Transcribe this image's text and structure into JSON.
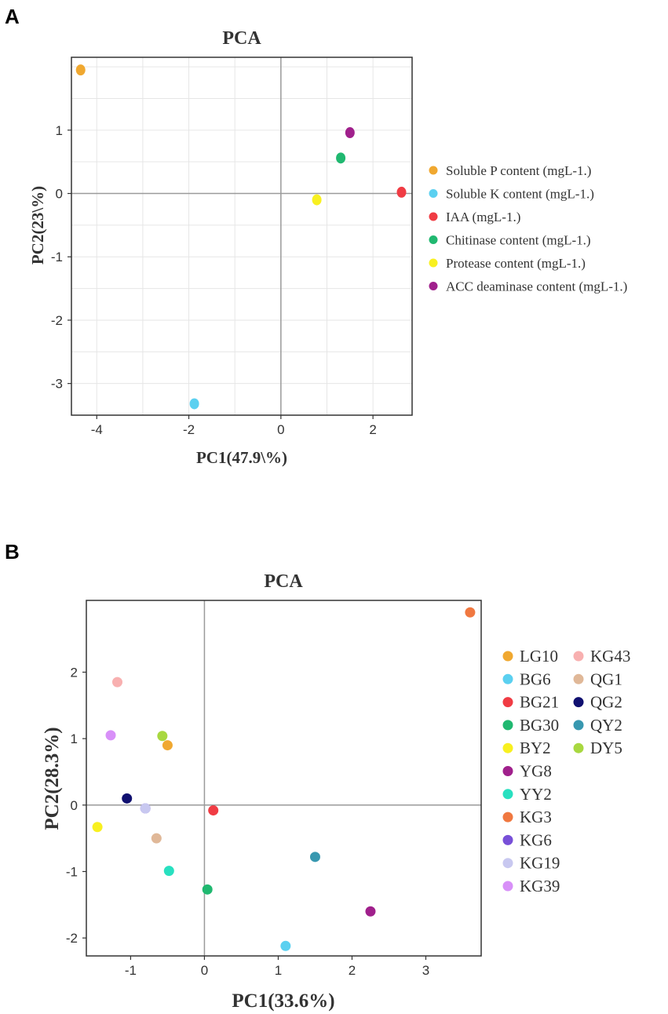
{
  "panels": {
    "a": {
      "letter": "A"
    },
    "b": {
      "letter": "B"
    }
  },
  "chart_data": [
    {
      "type": "scatter",
      "title": "PCA",
      "xlabel": "PC1(47.9\\%)",
      "ylabel": "PC2(23\\%)",
      "xlim": [
        -4.55,
        2.85
      ],
      "ylim": [
        -3.5,
        2.15
      ],
      "xticks": [
        -4,
        -2,
        0,
        2
      ],
      "yticks": [
        1,
        0,
        -1,
        -2,
        -3
      ],
      "grid": true,
      "legend_position": "right",
      "points": [
        {
          "label": "Soluble P content (mgL-1.)",
          "x": -4.35,
          "y": 1.95,
          "color": "#F0A830"
        },
        {
          "label": "Soluble K content (mgL-1.)",
          "x": -1.88,
          "y": -3.32,
          "color": "#5BD0F0"
        },
        {
          "label": "IAA (mgL-1.)",
          "x": 2.62,
          "y": 0.02,
          "color": "#F03C44"
        },
        {
          "label": "Chitinase content (mgL-1.)",
          "x": 1.3,
          "y": 0.56,
          "color": "#20B870"
        },
        {
          "label": "Protease content (mgL-1.)",
          "x": 0.78,
          "y": -0.1,
          "color": "#F8F020"
        },
        {
          "label": "ACC deaminase content (mgL-1.)",
          "x": 1.5,
          "y": 0.96,
          "color": "#A0208C"
        }
      ]
    },
    {
      "type": "scatter",
      "title": "PCA",
      "xlabel": "PC1(33.6%)",
      "ylabel": "PC2(28.3%)",
      "xlim": [
        -1.6,
        3.75
      ],
      "ylim": [
        -2.27,
        3.08
      ],
      "xticks": [
        -1,
        0,
        1,
        2,
        3
      ],
      "yticks": [
        2,
        1,
        0,
        -1,
        -2
      ],
      "grid": false,
      "legend_position": "right",
      "points": [
        {
          "label": "LG10",
          "x": -0.5,
          "y": 0.9,
          "color": "#F0A830"
        },
        {
          "label": "BG6",
          "x": 1.1,
          "y": -2.12,
          "color": "#5BD0F0"
        },
        {
          "label": "BG21",
          "x": 0.12,
          "y": -0.08,
          "color": "#F03C44"
        },
        {
          "label": "BG30",
          "x": 0.04,
          "y": -1.27,
          "color": "#20B870"
        },
        {
          "label": "BY2",
          "x": -1.45,
          "y": -0.33,
          "color": "#F8F020"
        },
        {
          "label": "YG8",
          "x": 2.25,
          "y": -1.6,
          "color": "#A0208C"
        },
        {
          "label": "YY2",
          "x": -0.48,
          "y": -0.99,
          "color": "#28E0C0"
        },
        {
          "label": "KG3",
          "x": 3.6,
          "y": 2.9,
          "color": "#F07840"
        },
        {
          "label": "KG6",
          "x": -0.8,
          "y": -0.05,
          "color": "#7850D8"
        },
        {
          "label": "KG19",
          "x": -0.8,
          "y": -0.05,
          "color": "#C8C8F0"
        },
        {
          "label": "KG39",
          "x": -1.27,
          "y": 1.05,
          "color": "#D890F8"
        },
        {
          "label": "KG43",
          "x": -1.18,
          "y": 1.85,
          "color": "#F8B0B0"
        },
        {
          "label": "QG1",
          "x": -0.65,
          "y": -0.5,
          "color": "#E0B898"
        },
        {
          "label": "QG2",
          "x": -1.05,
          "y": 0.1,
          "color": "#101070"
        },
        {
          "label": "QY2",
          "x": 1.5,
          "y": -0.78,
          "color": "#3898B0"
        },
        {
          "label": "DY5",
          "x": -0.57,
          "y": 1.04,
          "color": "#A8D840"
        }
      ]
    }
  ]
}
